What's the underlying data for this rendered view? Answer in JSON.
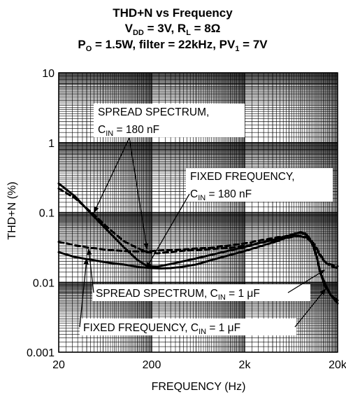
{
  "chart_data": {
    "type": "line",
    "title": {
      "line1": "THD+N vs Frequency",
      "line2": {
        "a": "V",
        "a_sub": "DD",
        "b": " = 3V, R",
        "b_sub": "L",
        "c": " = 8Ω"
      },
      "line3": {
        "a": "P",
        "a_sub": "O",
        "b": " = 1.5W, filter = 22kHz, PV",
        "b_sub": "1",
        "c": " = 7V"
      }
    },
    "xlabel": "FREQUENCY (Hz)",
    "ylabel": "THD+N (%)",
    "x_scale": "log",
    "y_scale": "log",
    "xlim": [
      20,
      20000
    ],
    "ylim": [
      0.001,
      10
    ],
    "x_ticks": [
      {
        "value": 20,
        "label": "20"
      },
      {
        "value": 200,
        "label": "200"
      },
      {
        "value": 2000,
        "label": "2k"
      },
      {
        "value": 20000,
        "label": "20k"
      }
    ],
    "y_ticks": [
      {
        "value": 10,
        "label": "10"
      },
      {
        "value": 1,
        "label": "1"
      },
      {
        "value": 0.1,
        "label": "0.1"
      },
      {
        "value": 0.01,
        "label": "0.01"
      },
      {
        "value": 0.001,
        "label": "0.001"
      }
    ],
    "grid": true,
    "series": [
      {
        "style": "solid-thick",
        "points": [
          [
            20,
            0.26
          ],
          [
            30,
            0.17
          ],
          [
            45,
            0.095
          ],
          [
            70,
            0.052
          ],
          [
            100,
            0.032
          ],
          [
            140,
            0.021
          ],
          [
            180,
            0.017
          ],
          [
            230,
            0.0168
          ],
          [
            300,
            0.018
          ],
          [
            400,
            0.0195
          ],
          [
            600,
            0.022
          ],
          [
            900,
            0.025
          ],
          [
            1300,
            0.028
          ],
          [
            2000,
            0.032
          ],
          [
            3000,
            0.037
          ],
          [
            4500,
            0.042
          ],
          [
            6000,
            0.047
          ],
          [
            7000,
            0.05
          ],
          [
            8000,
            0.051
          ],
          [
            9000,
            0.049
          ],
          [
            10000,
            0.042
          ],
          [
            11000,
            0.032
          ],
          [
            12000,
            0.022
          ],
          [
            13000,
            0.014
          ],
          [
            15000,
            0.009
          ],
          [
            17000,
            0.0065
          ],
          [
            20000,
            0.005
          ]
        ]
      },
      {
        "style": "dashed-thick",
        "points": [
          [
            20,
            0.22
          ],
          [
            30,
            0.16
          ],
          [
            45,
            0.1
          ],
          [
            70,
            0.058
          ],
          [
            100,
            0.039
          ],
          [
            140,
            0.031
          ],
          [
            180,
            0.027
          ],
          [
            230,
            0.026
          ],
          [
            300,
            0.027
          ],
          [
            400,
            0.028
          ],
          [
            600,
            0.029
          ],
          [
            900,
            0.03
          ],
          [
            1300,
            0.031
          ],
          [
            2000,
            0.033
          ],
          [
            3000,
            0.037
          ],
          [
            4500,
            0.041
          ],
          [
            6000,
            0.044
          ],
          [
            7500,
            0.046
          ],
          [
            9000,
            0.045
          ],
          [
            10000,
            0.042
          ],
          [
            11500,
            0.034
          ],
          [
            13000,
            0.025
          ],
          [
            15000,
            0.019
          ],
          [
            17000,
            0.017
          ],
          [
            20000,
            0.016
          ]
        ]
      },
      {
        "style": "dashed-thick",
        "points": [
          [
            20,
            0.038
          ],
          [
            30,
            0.034
          ],
          [
            45,
            0.031
          ],
          [
            70,
            0.029
          ],
          [
            100,
            0.028
          ],
          [
            150,
            0.0278
          ],
          [
            200,
            0.028
          ],
          [
            300,
            0.029
          ],
          [
            500,
            0.03
          ],
          [
            800,
            0.031
          ],
          [
            1200,
            0.033
          ],
          [
            2000,
            0.036
          ],
          [
            3000,
            0.04
          ],
          [
            4500,
            0.044
          ],
          [
            6000,
            0.046
          ],
          [
            7500,
            0.046
          ],
          [
            9000,
            0.044
          ],
          [
            10500,
            0.038
          ],
          [
            12000,
            0.029
          ],
          [
            13500,
            0.022
          ],
          [
            15000,
            0.019
          ],
          [
            17000,
            0.018
          ],
          [
            20000,
            0.017
          ]
        ]
      },
      {
        "style": "solid-thick",
        "points": [
          [
            20,
            0.027
          ],
          [
            30,
            0.023
          ],
          [
            45,
            0.021
          ],
          [
            70,
            0.019
          ],
          [
            100,
            0.018
          ],
          [
            150,
            0.0165
          ],
          [
            200,
            0.016
          ],
          [
            250,
            0.0158
          ],
          [
            320,
            0.016
          ],
          [
            400,
            0.0165
          ],
          [
            600,
            0.018
          ],
          [
            900,
            0.021
          ],
          [
            1300,
            0.024
          ],
          [
            2000,
            0.028
          ],
          [
            3000,
            0.033
          ],
          [
            4500,
            0.039
          ],
          [
            6000,
            0.045
          ],
          [
            7000,
            0.05
          ],
          [
            8000,
            0.052
          ],
          [
            9000,
            0.05
          ],
          [
            10000,
            0.043
          ],
          [
            11000,
            0.033
          ],
          [
            12000,
            0.023
          ],
          [
            13000,
            0.014
          ],
          [
            14500,
            0.009
          ],
          [
            17000,
            0.0065
          ],
          [
            20000,
            0.0055
          ]
        ]
      }
    ],
    "annotations": [
      {
        "id": "ann-spread-180",
        "line1": "SPREAD SPECTRUM,",
        "line2_pre": "C",
        "line2_sub": "IN",
        "line2_post": " = 180 nF"
      },
      {
        "id": "ann-fixed-180",
        "line1": "FIXED FREQUENCY,",
        "line2_pre": "C",
        "line2_sub": "IN",
        "line2_post": " = 180 nF"
      },
      {
        "id": "ann-spread-1u",
        "line1_pre": "SPREAD SPECTRUM, C",
        "line1_sub": "IN",
        "line1_post": " = 1 μF"
      },
      {
        "id": "ann-fixed-1u",
        "line1_pre": "FIXED FREQUENCY, C",
        "line1_sub": "IN",
        "line1_post": " = 1 μF"
      }
    ]
  }
}
